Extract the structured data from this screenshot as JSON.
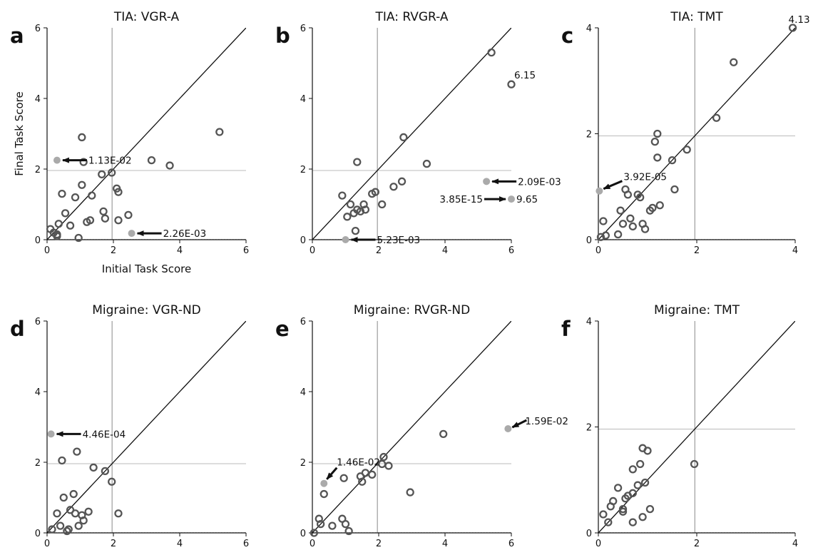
{
  "chart_data": [
    {
      "panel_label": "a",
      "type": "scatter",
      "title": "TIA: VGR-A",
      "xlabel": "Initial Task Score",
      "ylabel": "Final Task Score",
      "xlim": [
        0,
        6
      ],
      "ylim": [
        0,
        6
      ],
      "xticks": [
        "0",
        "2",
        "4",
        "6"
      ],
      "yticks": [
        "0",
        "2",
        "4",
        "6"
      ],
      "threshold": 1.96,
      "points": [
        [
          0.1,
          0.3
        ],
        [
          0.2,
          0.2
        ],
        [
          0.3,
          0.15
        ],
        [
          0.3,
          0.1
        ],
        [
          0.35,
          0.45
        ],
        [
          0.45,
          1.3
        ],
        [
          0.55,
          0.75
        ],
        [
          0.7,
          0.4
        ],
        [
          0.85,
          1.2
        ],
        [
          0.95,
          0.05
        ],
        [
          1.05,
          1.55
        ],
        [
          1.1,
          2.2
        ],
        [
          1.05,
          2.9
        ],
        [
          1.3,
          0.55
        ],
        [
          1.35,
          1.25
        ],
        [
          1.2,
          0.5
        ],
        [
          1.65,
          1.85
        ],
        [
          1.7,
          0.8
        ],
        [
          1.75,
          0.6
        ],
        [
          1.95,
          1.9
        ],
        [
          2.1,
          1.45
        ],
        [
          2.15,
          1.35
        ],
        [
          2.15,
          0.55
        ],
        [
          2.45,
          0.7
        ],
        [
          3.15,
          2.25
        ],
        [
          3.7,
          2.1
        ],
        [
          5.2,
          3.05
        ]
      ],
      "highlights": [
        {
          "x": 0.3,
          "y": 2.25,
          "label": "1.13E-02"
        },
        {
          "x": 2.55,
          "y": 0.18,
          "label": "2.26E-03"
        }
      ]
    },
    {
      "panel_label": "b",
      "type": "scatter",
      "title": "TIA: RVGR-A",
      "xlabel": "",
      "ylabel": "",
      "xlim": [
        0,
        6
      ],
      "ylim": [
        0,
        6
      ],
      "xticks": [
        "0",
        "2",
        "4",
        "6"
      ],
      "yticks": [
        "0",
        "2",
        "4",
        "6"
      ],
      "threshold": 1.96,
      "points": [
        [
          0.9,
          1.25
        ],
        [
          1.05,
          0.65
        ],
        [
          1.15,
          1.0
        ],
        [
          1.25,
          0.75
        ],
        [
          1.3,
          0.25
        ],
        [
          1.35,
          2.2
        ],
        [
          1.35,
          0.85
        ],
        [
          1.45,
          0.8
        ],
        [
          1.55,
          1.0
        ],
        [
          1.6,
          0.85
        ],
        [
          1.8,
          1.3
        ],
        [
          1.9,
          1.35
        ],
        [
          2.1,
          1.0
        ],
        [
          2.45,
          1.5
        ],
        [
          2.7,
          1.65
        ],
        [
          2.75,
          2.9
        ],
        [
          3.45,
          2.15
        ],
        [
          5.4,
          5.3
        ],
        [
          6.0,
          4.4
        ]
      ],
      "highlights": [
        {
          "x": 1.0,
          "y": 0.0,
          "label": "5.23E-03"
        },
        {
          "x": 5.25,
          "y": 1.65,
          "label": "2.09E-03"
        },
        {
          "x": 6.0,
          "y": 1.15,
          "label": "3.85E-15"
        }
      ],
      "text_labels": [
        {
          "x": 6.0,
          "y": 4.4,
          "label": "6.15"
        },
        {
          "x": 6.0,
          "y": 1.15,
          "label": "9.65"
        }
      ]
    },
    {
      "panel_label": "c",
      "type": "scatter",
      "title": "TIA: TMT",
      "xlabel": "",
      "ylabel": "",
      "xlim": [
        0,
        4
      ],
      "ylim": [
        0,
        4
      ],
      "xticks": [
        "0",
        "2",
        "4"
      ],
      "yticks": [
        "0",
        "2",
        "4"
      ],
      "threshold": 1.96,
      "points": [
        [
          0.05,
          0.05
        ],
        [
          0.1,
          0.35
        ],
        [
          0.15,
          0.08
        ],
        [
          0.4,
          0.1
        ],
        [
          0.45,
          0.55
        ],
        [
          0.5,
          0.3
        ],
        [
          0.55,
          0.95
        ],
        [
          0.6,
          0.85
        ],
        [
          0.65,
          0.4
        ],
        [
          0.7,
          0.25
        ],
        [
          0.8,
          0.85
        ],
        [
          0.85,
          0.8
        ],
        [
          0.9,
          0.3
        ],
        [
          0.95,
          0.2
        ],
        [
          1.05,
          0.55
        ],
        [
          1.1,
          0.6
        ],
        [
          1.15,
          1.85
        ],
        [
          1.2,
          2.0
        ],
        [
          1.2,
          1.55
        ],
        [
          1.25,
          0.65
        ],
        [
          1.5,
          1.5
        ],
        [
          1.55,
          0.95
        ],
        [
          1.8,
          1.7
        ],
        [
          2.4,
          2.3
        ],
        [
          2.75,
          3.35
        ],
        [
          3.95,
          4.0
        ]
      ],
      "highlights": [
        {
          "x": 0.02,
          "y": 0.92,
          "label": "3.92E-05"
        }
      ],
      "text_labels": [
        {
          "x": 3.95,
          "y": 4.0,
          "label": "4.13"
        }
      ]
    },
    {
      "panel_label": "d",
      "type": "scatter",
      "title": "Migraine: VGR-ND",
      "xlabel": "",
      "ylabel": "",
      "xlim": [
        0,
        6
      ],
      "ylim": [
        0,
        6
      ],
      "xticks": [
        "0",
        "2",
        "4",
        "6"
      ],
      "yticks": [
        "0",
        "2",
        "4",
        "6"
      ],
      "threshold": 1.96,
      "points": [
        [
          0.15,
          0.1
        ],
        [
          0.3,
          0.55
        ],
        [
          0.4,
          0.2
        ],
        [
          0.45,
          2.05
        ],
        [
          0.5,
          1.0
        ],
        [
          0.6,
          0.05
        ],
        [
          0.65,
          0.1
        ],
        [
          0.7,
          0.65
        ],
        [
          0.8,
          1.1
        ],
        [
          0.85,
          0.55
        ],
        [
          0.9,
          2.3
        ],
        [
          0.95,
          0.2
        ],
        [
          1.05,
          0.5
        ],
        [
          1.1,
          0.35
        ],
        [
          1.25,
          0.6
        ],
        [
          1.4,
          1.85
        ],
        [
          1.75,
          1.75
        ],
        [
          1.95,
          1.45
        ],
        [
          2.15,
          0.55
        ]
      ],
      "highlights": [
        {
          "x": 0.12,
          "y": 2.8,
          "label": "4.46E-04"
        }
      ]
    },
    {
      "panel_label": "e",
      "type": "scatter",
      "title": "Migraine: RVGR-ND",
      "xlabel": "",
      "ylabel": "",
      "xlim": [
        0,
        6
      ],
      "ylim": [
        0,
        6
      ],
      "xticks": [
        "0",
        "2",
        "4",
        "6"
      ],
      "yticks": [
        "0",
        "2",
        "4",
        "6"
      ],
      "threshold": 1.96,
      "points": [
        [
          0.05,
          0.0
        ],
        [
          0.2,
          0.4
        ],
        [
          0.25,
          0.25
        ],
        [
          0.35,
          1.1
        ],
        [
          0.6,
          0.2
        ],
        [
          0.9,
          0.4
        ],
        [
          0.95,
          1.55
        ],
        [
          1.0,
          0.25
        ],
        [
          1.1,
          0.05
        ],
        [
          1.45,
          1.6
        ],
        [
          1.5,
          1.45
        ],
        [
          1.6,
          1.7
        ],
        [
          1.8,
          1.65
        ],
        [
          2.1,
          1.95
        ],
        [
          2.15,
          2.15
        ],
        [
          2.3,
          1.9
        ],
        [
          2.95,
          1.15
        ],
        [
          3.95,
          2.8
        ]
      ],
      "highlights": [
        {
          "x": 0.35,
          "y": 1.4,
          "label": "1.46E-02"
        },
        {
          "x": 5.9,
          "y": 2.95,
          "label": "1.59E-02"
        }
      ]
    },
    {
      "panel_label": "f",
      "type": "scatter",
      "title": "Migraine: TMT",
      "xlabel": "",
      "ylabel": "",
      "xlim": [
        0,
        4
      ],
      "ylim": [
        0,
        4
      ],
      "xticks": [
        "0",
        "2",
        "4"
      ],
      "yticks": [
        "0",
        "2",
        "4"
      ],
      "threshold": 1.96,
      "points": [
        [
          0.1,
          0.35
        ],
        [
          0.2,
          0.2
        ],
        [
          0.25,
          0.5
        ],
        [
          0.3,
          0.6
        ],
        [
          0.4,
          0.85
        ],
        [
          0.5,
          0.45
        ],
        [
          0.5,
          0.4
        ],
        [
          0.55,
          0.65
        ],
        [
          0.6,
          0.7
        ],
        [
          0.7,
          0.75
        ],
        [
          0.7,
          0.2
        ],
        [
          0.7,
          1.2
        ],
        [
          0.8,
          0.9
        ],
        [
          0.85,
          1.3
        ],
        [
          0.9,
          0.3
        ],
        [
          0.9,
          1.6
        ],
        [
          0.95,
          0.95
        ],
        [
          1.0,
          1.55
        ],
        [
          1.05,
          0.45
        ],
        [
          1.95,
          1.3
        ]
      ]
    }
  ]
}
